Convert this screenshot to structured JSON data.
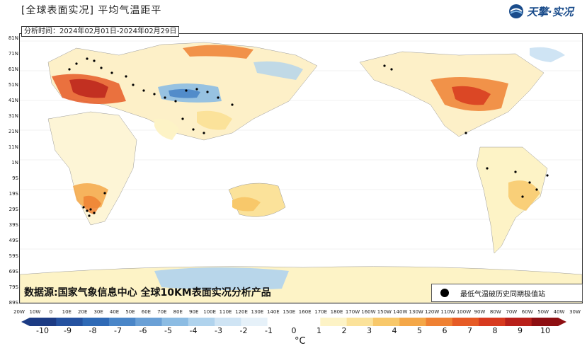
{
  "title": "[全球表面实况] 平均气温距平",
  "period": "分析时间：2024年02月01日-2024年02月29日",
  "logo": {
    "text": "天擎·实况",
    "icon": "logo-icon"
  },
  "source": "数据源:国家气象信息中心  全球10KM表面实况分析产品",
  "legend": {
    "marker_label": "最低气温破历史同期极值站",
    "marker_color": "#000000"
  },
  "lat_labels": [
    "81N",
    "71N",
    "61N",
    "51N",
    "41N",
    "31N",
    "21N",
    "11N",
    "1N",
    "9S",
    "19S",
    "29S",
    "39S",
    "49S",
    "59S",
    "69S",
    "79S",
    "89S"
  ],
  "lon_labels": [
    "20W",
    "10W",
    "0",
    "10E",
    "20E",
    "30E",
    "40E",
    "50E",
    "60E",
    "70E",
    "80E",
    "90E",
    "100E",
    "110E",
    "120E",
    "130E",
    "140E",
    "150E",
    "160E",
    "170E",
    "180E",
    "170W",
    "160W",
    "150W",
    "140W",
    "130W",
    "120W",
    "110W",
    "100W",
    "90W",
    "80W",
    "70W",
    "60W",
    "50W",
    "40W",
    "30W"
  ],
  "colorbar": {
    "labels": [
      "-10",
      "-9",
      "-8",
      "-7",
      "-6",
      "-5",
      "-4",
      "-3",
      "-2",
      "-1",
      "0",
      "1",
      "2",
      "3",
      "4",
      "5",
      "6",
      "7",
      "8",
      "9",
      "10"
    ],
    "colors": [
      "#1c3b84",
      "#2552a0",
      "#2f6ab6",
      "#4a86c8",
      "#6aa0d6",
      "#8cbce3",
      "#b0d3ed",
      "#cfe4f4",
      "#e6f1f9",
      "#ffffff",
      "#ffffff",
      "#fdf3c6",
      "#fbe29a",
      "#f8c86a",
      "#f4a748",
      "#ef8133",
      "#e65b26",
      "#d73a1f",
      "#b8201a",
      "#8e0f12"
    ],
    "unit": "°C"
  }
}
